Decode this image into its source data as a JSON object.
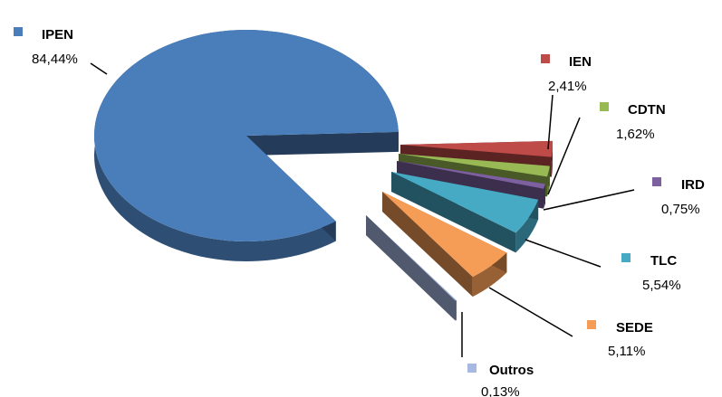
{
  "chart_data": {
    "type": "pie",
    "title": "",
    "style": "3d-exploded",
    "slices": [
      {
        "label": "IPEN",
        "value": 84.44,
        "value_text": "84,44%",
        "color": "#4a7ebb"
      },
      {
        "label": "IEN",
        "value": 2.41,
        "value_text": "2,41%",
        "color": "#be4b48"
      },
      {
        "label": "CDTN",
        "value": 1.62,
        "value_text": "1,62%",
        "color": "#98b954"
      },
      {
        "label": "IRD",
        "value": 0.75,
        "value_text": "0,75%",
        "color": "#7d60a0"
      },
      {
        "label": "TLC",
        "value": 5.54,
        "value_text": "5,54%",
        "color": "#46aac5"
      },
      {
        "label": "SEDE",
        "value": 5.11,
        "value_text": "5,11%",
        "color": "#f59d56"
      },
      {
        "label": "Outros",
        "value": 0.13,
        "value_text": "0,13%",
        "color": "#a7b9e3"
      }
    ]
  }
}
